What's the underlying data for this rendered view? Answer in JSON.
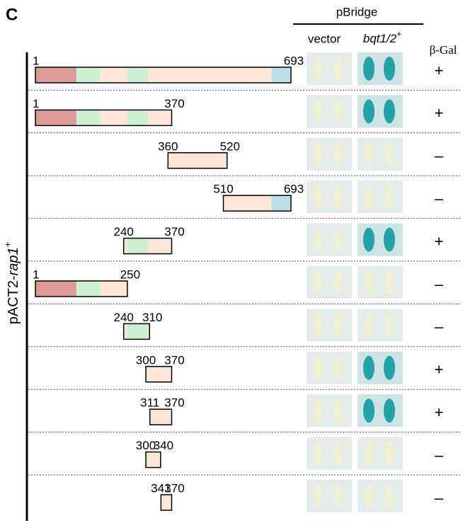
{
  "panel": "C",
  "header": {
    "group": "pBridge",
    "vector": "vector",
    "bait": {
      "name": "bqt1/2",
      "sup": "+"
    },
    "readout": "β-Gal"
  },
  "side_label": {
    "plasmid": "pACT2-",
    "gene": "rap1",
    "sup": "+"
  },
  "rows": [
    {
      "start": 1,
      "end": 693,
      "result": "+"
    },
    {
      "start": 1,
      "end": 370,
      "result": "+"
    },
    {
      "start": 360,
      "end": 520,
      "result": "–"
    },
    {
      "start": 510,
      "end": 693,
      "result": "–"
    },
    {
      "start": 240,
      "end": 370,
      "result": "+"
    },
    {
      "start": 1,
      "end": 250,
      "result": "–"
    },
    {
      "start": 240,
      "end": 310,
      "result": "–"
    },
    {
      "start": 300,
      "end": 370,
      "result": "+"
    },
    {
      "start": 311,
      "end": 370,
      "result": "+"
    },
    {
      "start": 300,
      "end": 340,
      "result": "–"
    },
    {
      "start": 341,
      "end": 370,
      "result": "–"
    }
  ]
}
